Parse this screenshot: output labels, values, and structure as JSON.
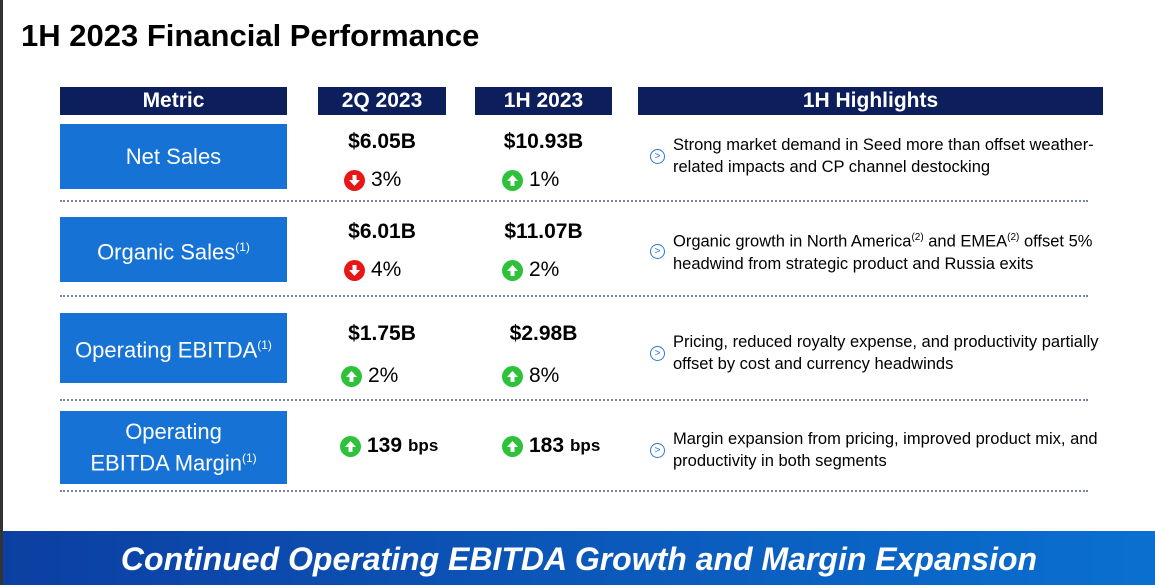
{
  "title": "1H 2023 Financial Performance",
  "headers": {
    "metric": "Metric",
    "q2": "2Q 2023",
    "h1": "1H 2023",
    "highlights": "1H Highlights"
  },
  "colors": {
    "navy": "#0c1e5b",
    "metric_blue": "#1672d4",
    "up": "#2ec23a",
    "down": "#e81717"
  },
  "rows": [
    {
      "metric": "Net Sales",
      "sup": "",
      "q2_value": "$6.05B",
      "q2_change": "3%",
      "q2_dir": "down",
      "h1_value": "$10.93B",
      "h1_change": "1%",
      "h1_dir": "up",
      "highlight_parts": [
        "Strong market demand in Seed more than offset weather-related impacts and CP channel destocking"
      ]
    },
    {
      "metric": "Organic Sales",
      "sup": "(1)",
      "q2_value": "$6.01B",
      "q2_change": "4%",
      "q2_dir": "down",
      "h1_value": "$11.07B",
      "h1_change": "2%",
      "h1_dir": "up",
      "highlight_parts": [
        "Organic growth in North America",
        "(2)",
        " and EMEA",
        "(2)",
        " offset 5% headwind from strategic product and Russia exits"
      ]
    },
    {
      "metric": "Operating EBITDA",
      "sup": "(1)",
      "q2_value": "$1.75B",
      "q2_change": "2%",
      "q2_dir": "up",
      "h1_value": "$2.98B",
      "h1_change": "8%",
      "h1_dir": "up",
      "highlight_parts": [
        "Pricing, reduced royalty expense, and productivity partially offset by cost and currency headwinds"
      ]
    },
    {
      "metric": "Operating EBITDA Margin",
      "sup": "(1)",
      "q2_value": "139",
      "q2_unit": "bps",
      "q2_dir": "up",
      "h1_value": "183",
      "h1_unit": "bps",
      "h1_dir": "up",
      "highlight_parts": [
        "Margin expansion from pricing, improved product mix, and productivity in both segments"
      ]
    }
  ],
  "banner": "Continued Operating EBITDA Growth and Margin Expansion"
}
